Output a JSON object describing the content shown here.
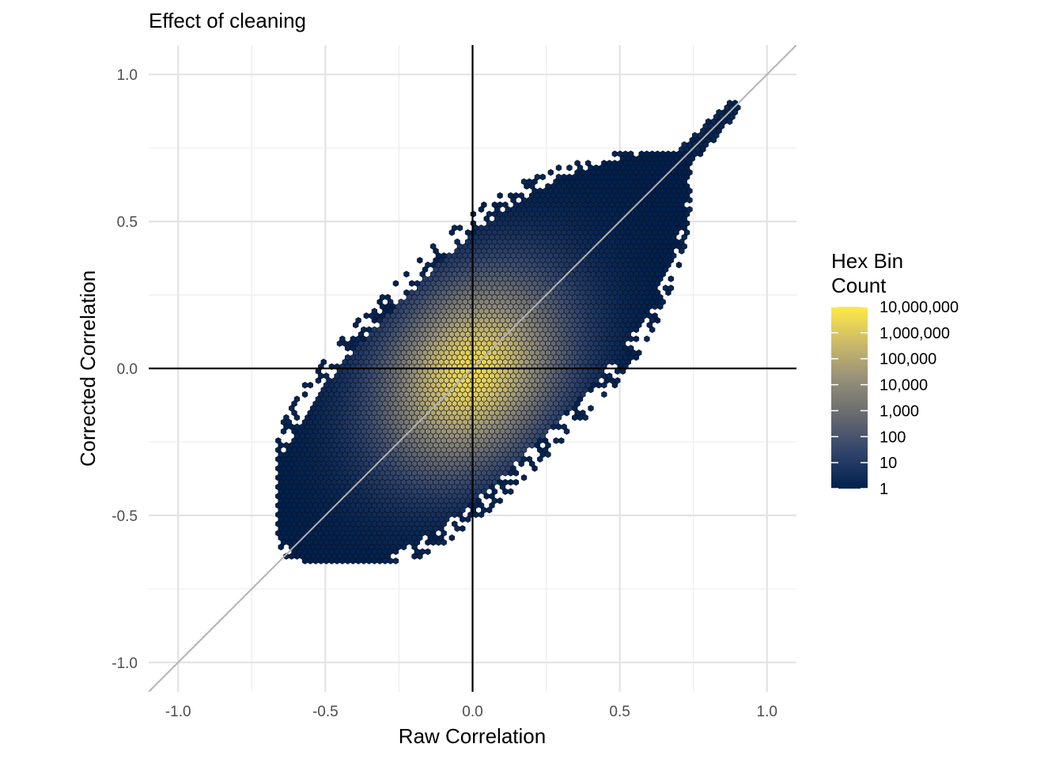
{
  "chart_data": {
    "type": "hexbin",
    "title": "Effect of cleaning",
    "xlabel": "Raw Correlation",
    "ylabel": "Corrected Correlation",
    "xlim": [
      -1.1,
      1.1
    ],
    "ylim": [
      -1.1,
      1.1
    ],
    "x_ticks": [
      -1.0,
      -0.5,
      0.0,
      0.5,
      1.0
    ],
    "y_ticks": [
      -1.0,
      -0.5,
      0.0,
      0.5,
      1.0
    ],
    "x_tick_labels": [
      "-1.0",
      "-0.5",
      "0.0",
      "0.5",
      "1.0"
    ],
    "y_tick_labels": [
      "-1.0",
      "-0.5",
      "0.0",
      "0.5",
      "1.0"
    ],
    "grid": true,
    "reference_lines": {
      "identity_line": {
        "slope": 1,
        "intercept": 0,
        "color": "#b3b3b3"
      },
      "hline_y": 0,
      "vline_x": 0,
      "color": "#000000"
    },
    "density": {
      "shape": "parallelogram band around y = x",
      "corner_points": [
        [
          -0.6,
          -0.6
        ],
        [
          -0.05,
          -0.45
        ],
        [
          0.68,
          0.68
        ],
        [
          0.0,
          0.6
        ]
      ],
      "peak": [
        0.0,
        -0.02
      ],
      "diagonal_tail": {
        "from": [
          0.6,
          0.65
        ],
        "to": [
          0.9,
          0.9
        ]
      },
      "peak_count_log10": 6.5
    },
    "legend": {
      "title_lines": [
        "Hex Bin",
        "Count"
      ],
      "scale": "log10",
      "labels": [
        "10,000,000",
        "1,000,000",
        "100,000",
        "10,000",
        "1,000",
        "100",
        "10",
        "1"
      ],
      "values": [
        10000000,
        1000000,
        100000,
        10000,
        1000,
        100,
        10,
        1
      ],
      "colors_low_to_high": [
        "#00204d",
        "#31446b",
        "#666970",
        "#958f78",
        "#cbba69",
        "#ffea46"
      ],
      "position": "right"
    }
  }
}
